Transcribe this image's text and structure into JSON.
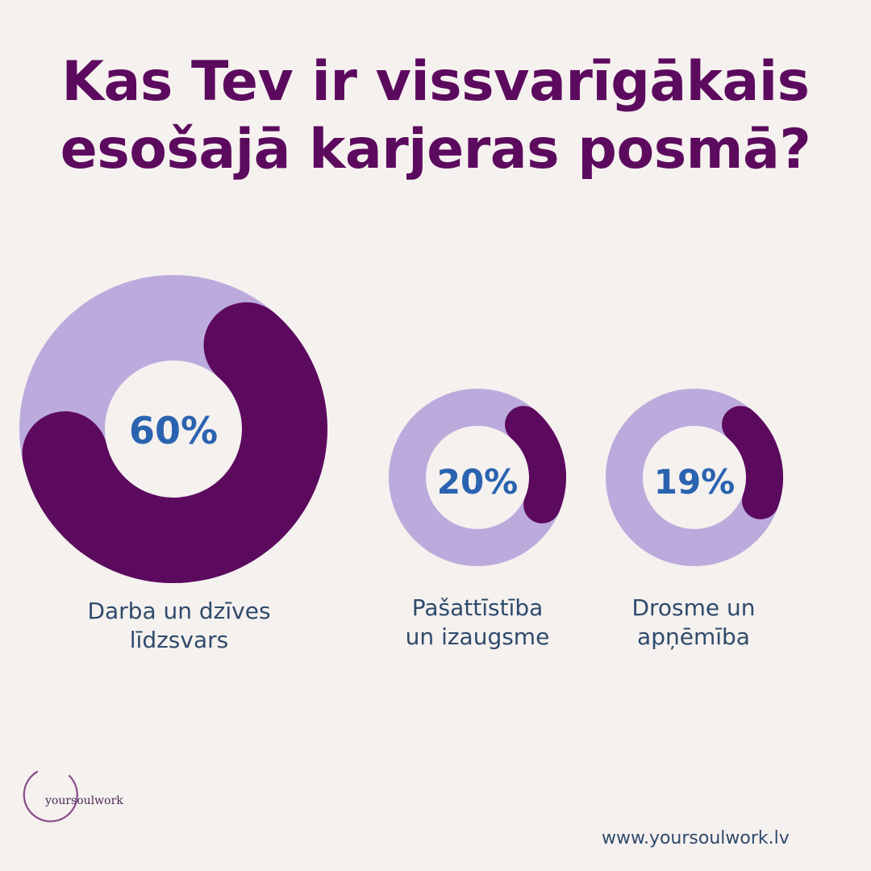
{
  "header": {
    "title_line1": "Kas Tev ir vissvarīgākais",
    "title_line2": "esošajā karjeras posmā?"
  },
  "colors": {
    "background": "#f5f1ef",
    "title": "#5c0a5e",
    "track": "#bcaadc",
    "fill": "#5c0a5e",
    "percent_text": "#2a63b0",
    "caption": "#2f4a6b"
  },
  "chart_data": {
    "type": "donut",
    "items": [
      {
        "value": 60,
        "label": "60%",
        "caption": [
          "Darba un dzīves",
          "līdzsvars"
        ]
      },
      {
        "value": 20,
        "label": "20%",
        "caption": [
          "Pašattīstība",
          "un izaugsme"
        ]
      },
      {
        "value": 19,
        "label": "19%",
        "caption": [
          "Drosme un",
          "apņēmība"
        ]
      }
    ]
  },
  "footer": {
    "logo_text": "yoursoulwork",
    "website": "www.yoursoulwork.lv"
  }
}
